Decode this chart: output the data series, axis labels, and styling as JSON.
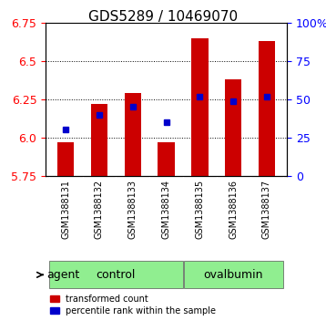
{
  "title": "GDS5289 / 10469070",
  "samples": [
    "GSM1388131",
    "GSM1388132",
    "GSM1388133",
    "GSM1388134",
    "GSM1388135",
    "GSM1388136",
    "GSM1388137"
  ],
  "red_values": [
    5.97,
    6.22,
    6.29,
    5.97,
    6.65,
    6.38,
    6.63
  ],
  "blue_values": [
    6.08,
    6.17,
    6.2,
    6.12,
    6.27,
    6.24,
    6.27
  ],
  "blue_percentile": [
    30,
    40,
    45,
    35,
    52,
    49,
    52
  ],
  "y_min": 5.75,
  "y_max": 6.75,
  "y_ticks_left": [
    5.75,
    6.0,
    6.25,
    6.5,
    6.75
  ],
  "y_ticks_right_vals": [
    0,
    25,
    50,
    75,
    100
  ],
  "y_ticks_right_labels": [
    "0",
    "25",
    "50",
    "75",
    "100%"
  ],
  "groups": [
    {
      "label": "control",
      "start": 0,
      "end": 3,
      "color": "#90ee90"
    },
    {
      "label": "ovalbumin",
      "start": 4,
      "end": 6,
      "color": "#90ee90"
    }
  ],
  "control_indices": [
    0,
    1,
    2,
    3
  ],
  "ovalbumin_indices": [
    4,
    5,
    6
  ],
  "bar_bottom": 5.75,
  "bar_color": "#cc0000",
  "dot_color": "#0000cc",
  "agent_label": "agent",
  "legend_red": "transformed count",
  "legend_blue": "percentile rank within the sample",
  "background_color": "#ffffff",
  "grid_color": "#000000",
  "xlabel_area_color": "#d3d3d3",
  "group_label_color": "#90ee90"
}
